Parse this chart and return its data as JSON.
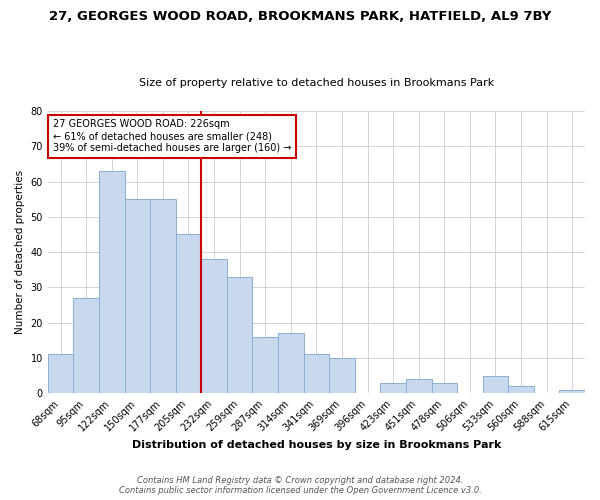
{
  "title": "27, GEORGES WOOD ROAD, BROOKMANS PARK, HATFIELD, AL9 7BY",
  "subtitle": "Size of property relative to detached houses in Brookmans Park",
  "xlabel": "Distribution of detached houses by size in Brookmans Park",
  "ylabel": "Number of detached properties",
  "categories": [
    "68sqm",
    "95sqm",
    "122sqm",
    "150sqm",
    "177sqm",
    "205sqm",
    "232sqm",
    "259sqm",
    "287sqm",
    "314sqm",
    "341sqm",
    "369sqm",
    "396sqm",
    "423sqm",
    "451sqm",
    "478sqm",
    "506sqm",
    "533sqm",
    "560sqm",
    "588sqm",
    "615sqm"
  ],
  "values": [
    11,
    27,
    63,
    55,
    55,
    45,
    38,
    33,
    16,
    17,
    11,
    10,
    0,
    3,
    4,
    3,
    0,
    5,
    2,
    0,
    1
  ],
  "bar_color": "#c8d9ee",
  "bar_edge_color": "#8aaed4",
  "marker_line_color": "#cc0000",
  "ylim": [
    0,
    80
  ],
  "yticks": [
    0,
    10,
    20,
    30,
    40,
    50,
    60,
    70,
    80
  ],
  "annotation_title": "27 GEORGES WOOD ROAD: 226sqm",
  "annotation_line1": "← 61% of detached houses are smaller (248)",
  "annotation_line2": "39% of semi-detached houses are larger (160) →",
  "annotation_box_color": "#ffffff",
  "annotation_box_edge": "#cc0000",
  "footer1": "Contains HM Land Registry data © Crown copyright and database right 2024.",
  "footer2": "Contains public sector information licensed under the Open Government Licence v3.0.",
  "background_color": "#ffffff",
  "grid_color": "#cccccc",
  "title_fontsize": 9.5,
  "subtitle_fontsize": 8.0,
  "xlabel_fontsize": 8.0,
  "ylabel_fontsize": 7.5,
  "tick_fontsize": 7.0,
  "annotation_fontsize": 7.0,
  "footer_fontsize": 6.0
}
